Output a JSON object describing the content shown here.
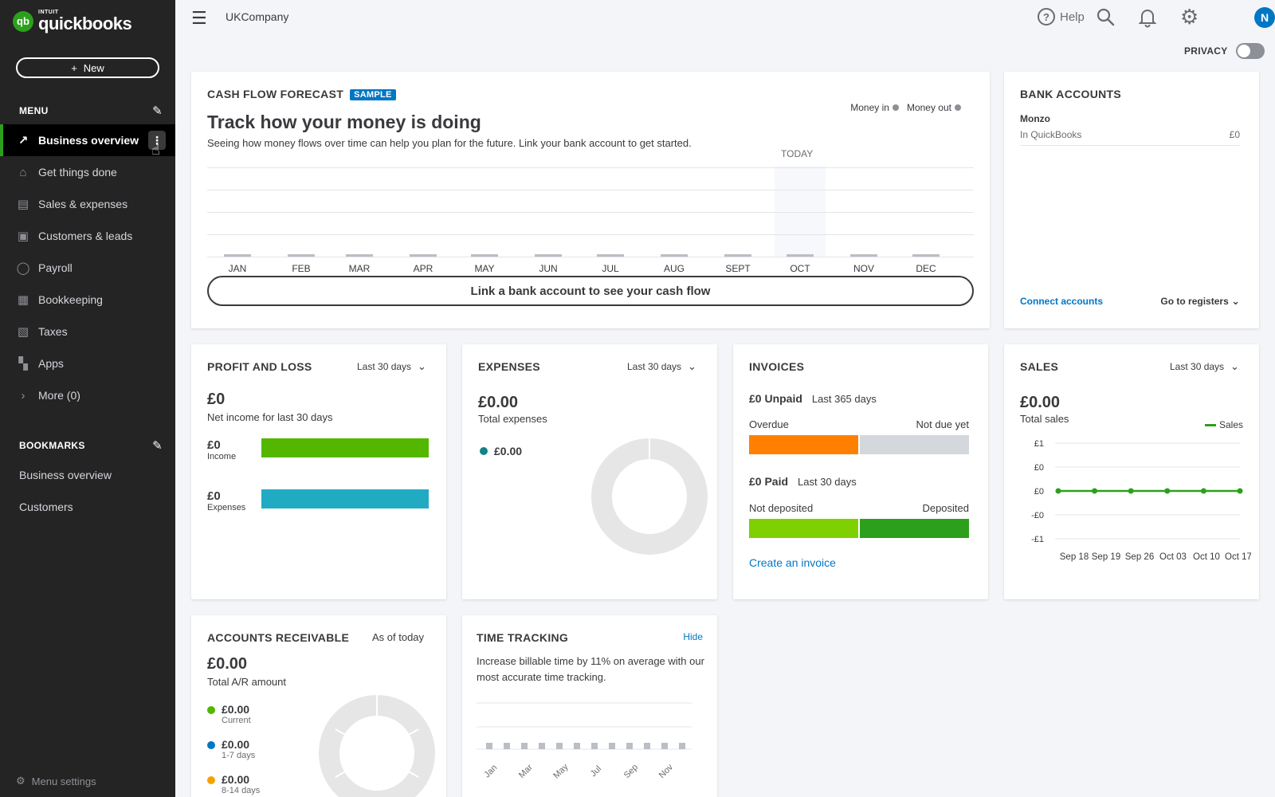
{
  "logo": {
    "intuit": "INTUIT",
    "name": "quickbooks",
    "badge": "qb"
  },
  "sidebar": {
    "new_label": "New",
    "menu_title": "MENU",
    "items": [
      {
        "label": "Business overview",
        "icon": "chart-line-icon",
        "glyph": "↗"
      },
      {
        "label": "Get things done",
        "icon": "home-icon",
        "glyph": "⌂"
      },
      {
        "label": "Sales & expenses",
        "icon": "receipt-icon",
        "glyph": "▤"
      },
      {
        "label": "Customers & leads",
        "icon": "customers-icon",
        "glyph": "▣"
      },
      {
        "label": "Payroll",
        "icon": "person-icon",
        "glyph": "◯"
      },
      {
        "label": "Bookkeeping",
        "icon": "calculator-icon",
        "glyph": "▦"
      },
      {
        "label": "Taxes",
        "icon": "tax-icon",
        "glyph": "▧"
      },
      {
        "label": "Apps",
        "icon": "apps-grid-icon",
        "glyph": "▚"
      },
      {
        "label": "More (0)",
        "icon": "chevron-right-icon",
        "glyph": "›"
      }
    ],
    "bookmarks_title": "BOOKMARKS",
    "bookmarks": [
      "Business overview",
      "Customers"
    ],
    "menu_settings": "Menu settings"
  },
  "topbar": {
    "company": "UKCompany",
    "help": "Help",
    "avatar_initial": "N"
  },
  "privacy": {
    "label": "PRIVACY"
  },
  "cashflow": {
    "title": "CASH FLOW FORECAST",
    "badge": "SAMPLE",
    "headline": "Track how your money is doing",
    "description": "Seeing how money flows over time can help you plan for the future. Link your bank account to get started.",
    "legend_in": "Money in",
    "legend_out": "Money out",
    "today": "TODAY",
    "months": [
      "JAN",
      "FEB",
      "MAR",
      "APR",
      "MAY",
      "JUN",
      "JUL",
      "AUG",
      "SEPT",
      "OCT",
      "NOV",
      "DEC"
    ],
    "link_button": "Link a bank account to see your cash flow"
  },
  "bank_accounts": {
    "title": "BANK ACCOUNTS",
    "account_name": "Monzo",
    "in_quickbooks_label": "In QuickBooks",
    "in_quickbooks_value": "£0",
    "connect": "Connect accounts",
    "goto": "Go to registers"
  },
  "profit_loss": {
    "title": "PROFIT AND LOSS",
    "period": "Last 30 days",
    "net_value": "£0",
    "net_label": "Net income for last 30 days",
    "income_value": "£0",
    "income_label": "Income",
    "expenses_value": "£0",
    "expenses_label": "Expenses",
    "income_color": "#53b700",
    "expenses_color": "#21abc3"
  },
  "expenses": {
    "title": "EXPENSES",
    "period": "Last 30 days",
    "total_value": "£0.00",
    "total_label": "Total expenses",
    "item_value": "£0.00",
    "item_color": "#108289"
  },
  "invoices": {
    "title": "INVOICES",
    "unpaid_value": "£0 Unpaid",
    "unpaid_period": "Last 365 days",
    "overdue": "Overdue",
    "not_due": "Not due yet",
    "paid_value": "£0 Paid",
    "paid_period": "Last 30 days",
    "not_deposited": "Not deposited",
    "deposited": "Deposited",
    "create": "Create an invoice",
    "overdue_color": "#ff8000",
    "not_due_color": "#d4d7dc",
    "not_deposited_color": "#7fd000",
    "deposited_color": "#2ca01c"
  },
  "sales": {
    "title": "SALES",
    "period": "Last 30 days",
    "total_value": "£0.00",
    "total_label": "Total sales",
    "legend": "Sales",
    "y_ticks": [
      "£1",
      "£0",
      "£0",
      "-£0",
      "-£1"
    ],
    "x_ticks": [
      "Sep 18",
      "Sep 19",
      "Sep 26",
      "Oct 03",
      "Oct 10",
      "Oct 17"
    ],
    "values": [
      0,
      0,
      0,
      0,
      0,
      0
    ],
    "line_color": "#2ca01c"
  },
  "accounts_receivable": {
    "title": "ACCOUNTS RECEIVABLE",
    "period": "As of today",
    "total_value": "£0.00",
    "total_label": "Total A/R amount",
    "items": [
      {
        "value": "£0.00",
        "label": "Current",
        "color": "#53b700"
      },
      {
        "value": "£0.00",
        "label": "1-7 days",
        "color": "#0077c5"
      },
      {
        "value": "£0.00",
        "label": "8-14 days",
        "color": "#f4a200"
      }
    ]
  },
  "time_tracking": {
    "title": "TIME TRACKING",
    "hide": "Hide",
    "description": "Increase billable time by 11% on average with our most accurate time tracking.",
    "months": [
      "Jan",
      "Mar",
      "May",
      "Jul",
      "Sep",
      "Nov"
    ]
  }
}
